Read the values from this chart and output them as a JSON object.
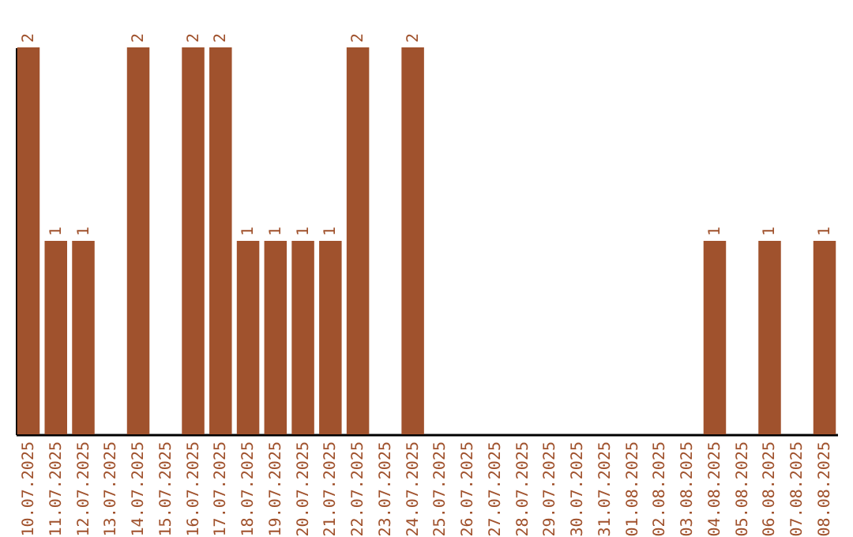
{
  "chart_data": {
    "type": "bar",
    "categories": [
      "10.07.2025",
      "11.07.2025",
      "12.07.2025",
      "13.07.2025",
      "14.07.2025",
      "15.07.2025",
      "16.07.2025",
      "17.07.2025",
      "18.07.2025",
      "19.07.2025",
      "20.07.2025",
      "21.07.2025",
      "22.07.2025",
      "23.07.2025",
      "24.07.2025",
      "25.07.2025",
      "26.07.2025",
      "27.07.2025",
      "28.07.2025",
      "29.07.2025",
      "30.07.2025",
      "31.07.2025",
      "01.08.2025",
      "02.08.2025",
      "03.08.2025",
      "04.08.2025",
      "05.08.2025",
      "06.08.2025",
      "07.08.2025",
      "08.08.2025"
    ],
    "values": [
      2,
      1,
      1,
      null,
      2,
      null,
      2,
      2,
      1,
      1,
      1,
      1,
      2,
      null,
      2,
      null,
      null,
      null,
      null,
      null,
      null,
      null,
      null,
      null,
      null,
      1,
      null,
      1,
      null,
      1
    ],
    "color": "#a0522d",
    "data_labels": true,
    "tick_labels": "x"
  }
}
